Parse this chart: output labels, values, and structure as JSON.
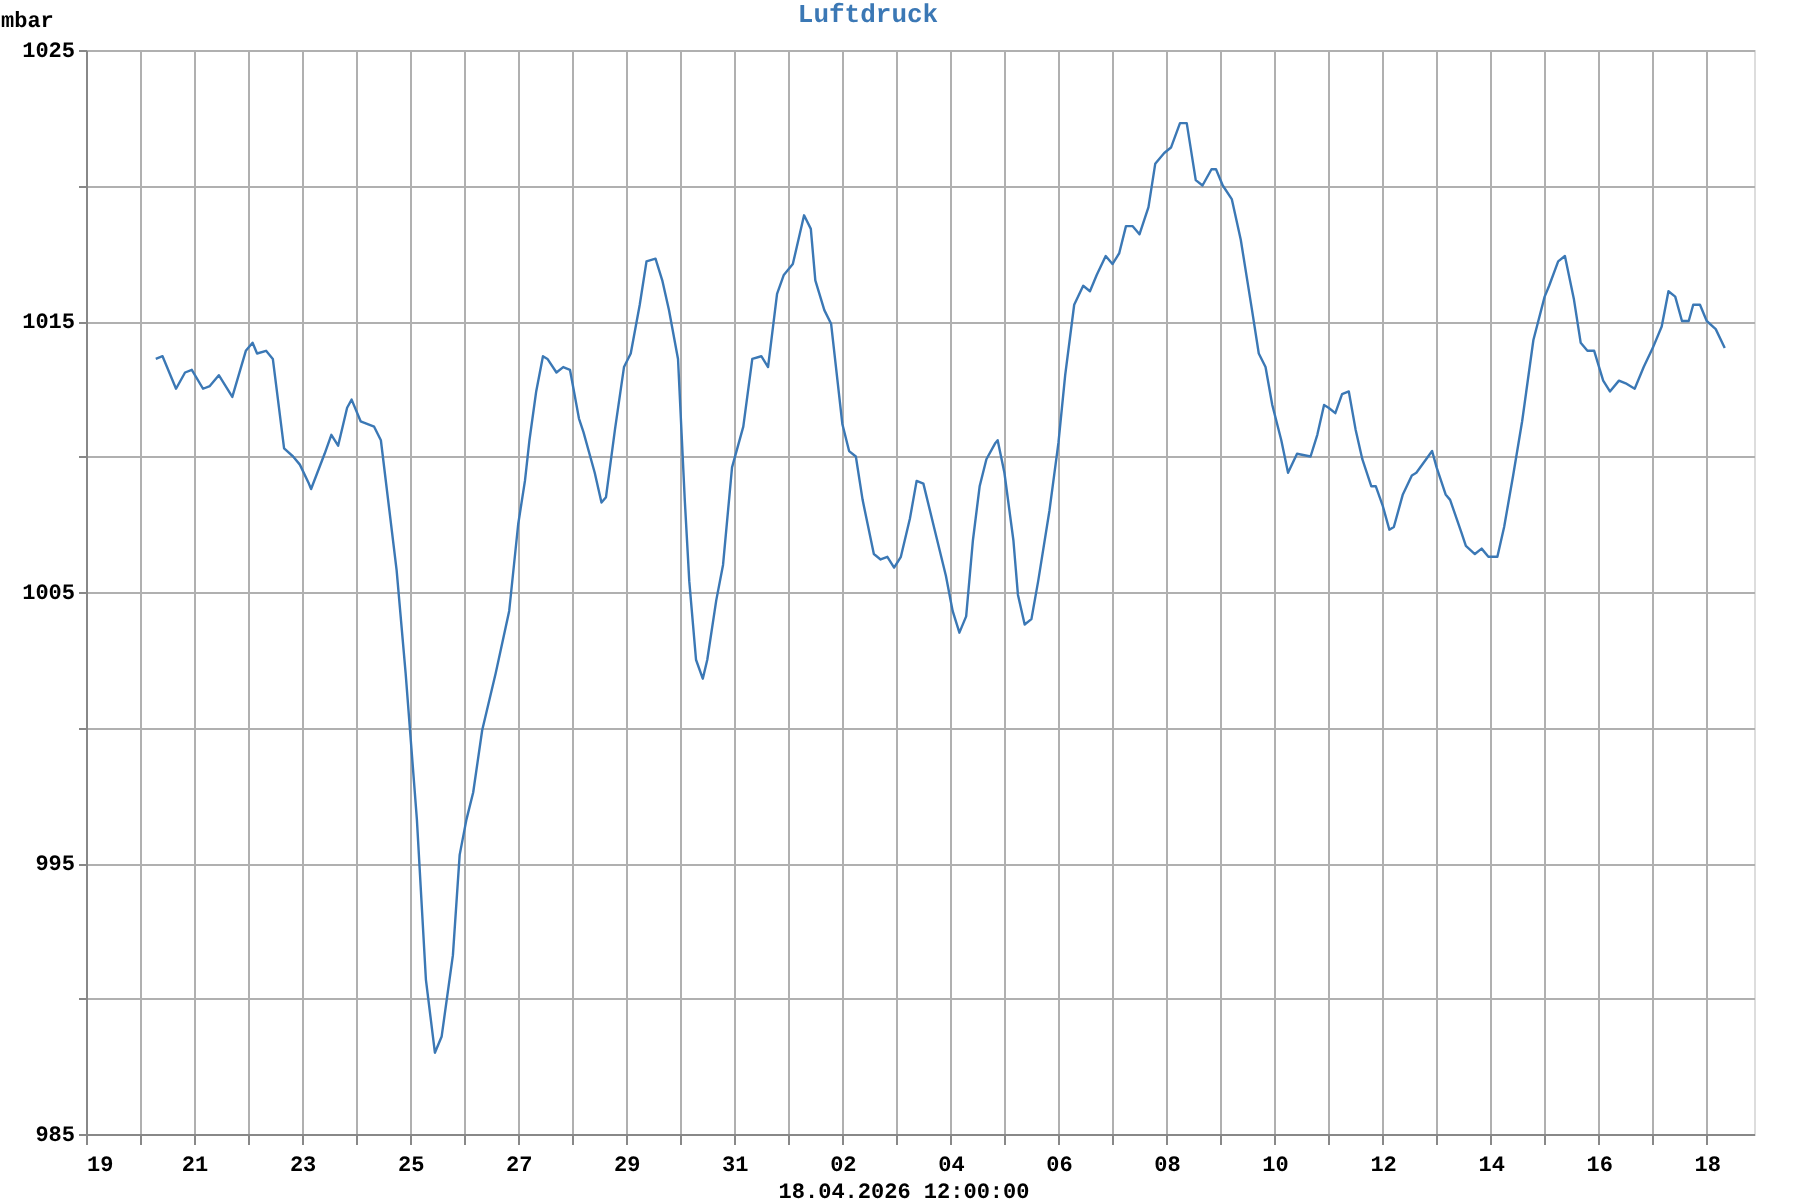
{
  "chart_data": {
    "type": "line",
    "title": "Luftdruck",
    "ylabel": "mbar",
    "annotations": [
      "18.04.2026 12:00:00"
    ],
    "x": [
      "2026-03-20T07:00",
      "2026-03-20T10:00",
      "2026-03-20T16:00",
      "2026-03-20T20:00",
      "2026-03-20T23:00",
      "2026-03-21T04:00",
      "2026-03-21T07:00",
      "2026-03-21T11:00",
      "2026-03-21T17:00",
      "2026-03-21T23:00",
      "2026-03-22T02:00",
      "2026-03-22T04:00",
      "2026-03-22T08:00",
      "2026-03-22T11:00",
      "2026-03-22T16:00",
      "2026-03-22T20:00",
      "2026-03-22T23:00",
      "2026-03-23T03:00",
      "2026-03-23T04:00",
      "2026-03-23T10:00",
      "2026-03-23T13:00",
      "2026-03-23T16:00",
      "2026-03-23T20:00",
      "2026-03-23T22:00",
      "2026-03-24T02:00",
      "2026-03-24T08:00",
      "2026-03-24T11:00",
      "2026-03-24T18:00",
      "2026-03-24T22:00",
      "2026-03-25T03:00",
      "2026-03-25T07:00",
      "2026-03-25T11:00",
      "2026-03-25T14:00",
      "2026-03-25T19:00",
      "2026-03-25T22:00",
      "2026-03-26T01:00",
      "2026-03-26T04:00",
      "2026-03-26T08:00",
      "2026-03-26T14:00",
      "2026-03-26T20:00",
      "2026-03-27T00:00",
      "2026-03-27T03:00",
      "2026-03-27T05:00",
      "2026-03-27T08:00",
      "2026-03-27T11:00",
      "2026-03-27T13:00",
      "2026-03-27T17:00",
      "2026-03-27T20:00",
      "2026-03-27T23:00",
      "2026-03-28T03:00",
      "2026-03-28T05:00",
      "2026-03-28T10:00",
      "2026-03-28T13:00",
      "2026-03-28T15:00",
      "2026-03-28T19:00",
      "2026-03-28T23:00",
      "2026-03-29T02:00",
      "2026-03-29T06:00",
      "2026-03-29T09:00",
      "2026-03-29T13:00",
      "2026-03-29T16:00",
      "2026-03-29T19:00",
      "2026-03-29T23:00",
      "2026-03-30T02:00",
      "2026-03-30T04:00",
      "2026-03-30T07:00",
      "2026-03-30T10:00",
      "2026-03-30T12:00",
      "2026-03-30T16:00",
      "2026-03-30T19:00",
      "2026-03-30T23:00",
      "2026-03-31T04:00",
      "2026-03-31T08:00",
      "2026-03-31T12:00",
      "2026-03-31T15:00",
      "2026-03-31T19:00",
      "2026-03-31T22:00",
      "2026-04-01T02:00",
      "2026-04-01T07:00",
      "2026-04-01T10:00",
      "2026-04-01T12:00",
      "2026-04-01T16:00",
      "2026-04-01T19:00",
      "2026-04-02T00:00",
      "2026-04-02T03:00",
      "2026-04-02T06:00",
      "2026-04-02T09:00",
      "2026-04-02T14:00",
      "2026-04-02T17:00",
      "2026-04-02T20:00",
      "2026-04-02T23:00",
      "2026-04-03T02:00",
      "2026-04-03T06:00",
      "2026-04-03T09:00",
      "2026-04-03T12:00",
      "2026-04-03T17:00",
      "2026-04-03T22:00",
      "2026-04-04T01:00",
      "2026-04-04T04:00",
      "2026-04-04T07:00",
      "2026-04-04T10:00",
      "2026-04-04T13:00",
      "2026-04-04T16:00",
      "2026-04-04T20:00",
      "2026-04-04T21:00",
      "2026-04-05T00:00",
      "2026-04-05T04:00",
      "2026-04-05T06:00",
      "2026-04-05T09:00",
      "2026-04-05T12:00",
      "2026-04-05T15:00",
      "2026-04-05T20:00",
      "2026-04-06T00:00",
      "2026-04-06T03:00",
      "2026-04-06T07:00",
      "2026-04-06T11:00",
      "2026-04-06T14:00",
      "2026-04-06T17:00",
      "2026-04-06T21:00",
      "2026-04-07T00:00",
      "2026-04-07T03:00",
      "2026-04-07T06:00",
      "2026-04-07T09:00",
      "2026-04-07T12:00",
      "2026-04-07T16:00",
      "2026-04-07T19:00",
      "2026-04-07T23:00",
      "2026-04-08T02:00",
      "2026-04-08T06:00",
      "2026-04-08T09:00",
      "2026-04-08T13:00",
      "2026-04-08T16:00",
      "2026-04-08T20:00",
      "2026-04-08T22:00",
      "2026-04-09T01:00",
      "2026-04-09T05:00",
      "2026-04-09T09:00",
      "2026-04-09T14:00",
      "2026-04-09T17:00",
      "2026-04-09T20:00",
      "2026-04-09T23:00",
      "2026-04-10T03:00",
      "2026-04-10T06:00",
      "2026-04-10T10:00",
      "2026-04-10T16:00",
      "2026-04-10T19:00",
      "2026-04-10T22:00",
      "2026-04-11T00:00",
      "2026-04-11T03:00",
      "2026-04-11T06:00",
      "2026-04-11T09:00",
      "2026-04-11T12:00",
      "2026-04-11T15:00",
      "2026-04-11T19:00",
      "2026-04-11T21:00",
      "2026-04-12T00:00",
      "2026-04-12T03:00",
      "2026-04-12T05:00",
      "2026-04-12T09:00",
      "2026-04-12T13:00",
      "2026-04-12T15:00",
      "2026-04-12T22:00",
      "2026-04-13T00:00",
      "2026-04-13T04:00",
      "2026-04-13T06:00",
      "2026-04-13T11:00",
      "2026-04-13T13:00",
      "2026-04-13T17:00",
      "2026-04-13T20:00",
      "2026-04-13T23:00",
      "2026-04-14T03:00",
      "2026-04-14T06:00",
      "2026-04-14T10:00",
      "2026-04-14T14:00",
      "2026-04-14T19:00",
      "2026-04-15T00:00",
      "2026-04-15T02:00",
      "2026-04-15T06:00",
      "2026-04-15T09:00",
      "2026-04-15T13:00",
      "2026-04-15T16:00",
      "2026-04-15T19:00",
      "2026-04-15T22:00",
      "2026-04-16T02:00",
      "2026-04-16T05:00",
      "2026-04-16T09:00",
      "2026-04-16T12:00",
      "2026-04-16T16:00",
      "2026-04-16T20:00",
      "2026-04-17T00:00",
      "2026-04-17T04:00",
      "2026-04-17T07:00",
      "2026-04-17T10:00",
      "2026-04-17T13:00",
      "2026-04-17T16:00",
      "2026-04-17T18:00",
      "2026-04-17T21:00",
      "2026-04-18T00:00",
      "2026-04-18T04:00",
      "2026-04-18T08:00"
    ],
    "series": [
      {
        "color": "#3b78b5",
        "values": [
          1013.6,
          1013.7,
          1012.5,
          1013.1,
          1013.2,
          1012.5,
          1012.6,
          1013.0,
          1012.2,
          1013.9,
          1014.2,
          1013.8,
          1013.9,
          1013.6,
          1010.3,
          1010.0,
          1009.7,
          1009.0,
          1008.8,
          1010.1,
          1010.8,
          1010.4,
          1011.8,
          1012.1,
          1011.3,
          1011.1,
          1010.6,
          1005.8,
          1002.0,
          996.6,
          990.7,
          988.0,
          988.6,
          991.6,
          995.3,
          996.6,
          997.6,
          999.9,
          1002.0,
          1004.3,
          1007.5,
          1009.1,
          1010.6,
          1012.4,
          1013.7,
          1013.6,
          1013.1,
          1013.3,
          1013.2,
          1011.4,
          1010.9,
          1009.4,
          1008.3,
          1008.5,
          1011.0,
          1013.3,
          1013.8,
          1015.6,
          1017.2,
          1017.3,
          1016.5,
          1015.4,
          1013.6,
          1008.4,
          1005.4,
          1002.5,
          1001.8,
          1002.5,
          1004.7,
          1006.0,
          1009.6,
          1011.1,
          1013.6,
          1013.7,
          1013.3,
          1016.0,
          1016.7,
          1017.1,
          1018.9,
          1018.4,
          1016.5,
          1015.4,
          1014.9,
          1011.2,
          1010.2,
          1010.0,
          1008.4,
          1006.4,
          1006.2,
          1006.3,
          1005.9,
          1006.3,
          1007.7,
          1009.1,
          1009.0,
          1007.3,
          1005.6,
          1004.3,
          1003.5,
          1004.1,
          1006.9,
          1008.9,
          1009.9,
          1010.5,
          1010.6,
          1009.4,
          1006.9,
          1004.9,
          1003.8,
          1004.0,
          1005.4,
          1008.0,
          1010.5,
          1013.0,
          1015.6,
          1016.3,
          1016.1,
          1016.7,
          1017.4,
          1017.1,
          1017.5,
          1018.5,
          1018.5,
          1018.2,
          1019.2,
          1020.8,
          1021.2,
          1021.4,
          1022.3,
          1022.3,
          1020.2,
          1020.0,
          1020.6,
          1020.6,
          1020.0,
          1019.5,
          1018.0,
          1015.4,
          1013.8,
          1013.3,
          1011.9,
          1010.6,
          1009.4,
          1010.1,
          1010.0,
          1010.8,
          1011.9,
          1011.8,
          1011.6,
          1012.3,
          1012.4,
          1011.0,
          1009.9,
          1008.9,
          1008.9,
          1008.2,
          1007.3,
          1007.4,
          1008.6,
          1009.3,
          1009.4,
          1010.2,
          1009.6,
          1008.6,
          1008.4,
          1007.2,
          1006.7,
          1006.4,
          1006.6,
          1006.3,
          1006.3,
          1007.4,
          1009.3,
          1011.3,
          1014.3,
          1015.9,
          1016.3,
          1017.2,
          1017.4,
          1015.8,
          1014.2,
          1013.9,
          1013.9,
          1012.8,
          1012.4,
          1012.8,
          1012.7,
          1012.5,
          1013.3,
          1014.0,
          1014.8,
          1016.1,
          1015.9,
          1015.0,
          1015.0,
          1015.6,
          1015.6,
          1015.0,
          1014.7,
          1014.0
        ]
      }
    ],
    "xlim": [
      "2026-03-19",
      "2026-04-18T21:00"
    ],
    "xticks": [
      {
        "value": "2026-03-19",
        "label": "19"
      },
      {
        "value": "2026-03-20",
        "label": null
      },
      {
        "value": "2026-03-21",
        "label": "21"
      },
      {
        "value": "2026-03-22",
        "label": null
      },
      {
        "value": "2026-03-23",
        "label": "23"
      },
      {
        "value": "2026-03-24",
        "label": null
      },
      {
        "value": "2026-03-25",
        "label": "25"
      },
      {
        "value": "2026-03-26",
        "label": null
      },
      {
        "value": "2026-03-27",
        "label": "27"
      },
      {
        "value": "2026-03-28",
        "label": null
      },
      {
        "value": "2026-03-29",
        "label": "29"
      },
      {
        "value": "2026-03-30",
        "label": null
      },
      {
        "value": "2026-03-31",
        "label": "31"
      },
      {
        "value": "2026-04-01",
        "label": null
      },
      {
        "value": "2026-04-02",
        "label": "02"
      },
      {
        "value": "2026-04-03",
        "label": null
      },
      {
        "value": "2026-04-04",
        "label": "04"
      },
      {
        "value": "2026-04-05",
        "label": null
      },
      {
        "value": "2026-04-06",
        "label": "06"
      },
      {
        "value": "2026-04-07",
        "label": null
      },
      {
        "value": "2026-04-08",
        "label": "08"
      },
      {
        "value": "2026-04-09",
        "label": null
      },
      {
        "value": "2026-04-10",
        "label": "10"
      },
      {
        "value": "2026-04-11",
        "label": null
      },
      {
        "value": "2026-04-12",
        "label": "12"
      },
      {
        "value": "2026-04-13",
        "label": null
      },
      {
        "value": "2026-04-14",
        "label": "14"
      },
      {
        "value": "2026-04-15",
        "label": null
      },
      {
        "value": "2026-04-16",
        "label": "16"
      },
      {
        "value": "2026-04-17",
        "label": null
      },
      {
        "value": "2026-04-18",
        "label": "18"
      }
    ],
    "ylim": [
      985,
      1025
    ],
    "yticks": [
      985,
      {
        "value": 990,
        "label": null
      },
      995,
      {
        "value": 1000,
        "label": null
      },
      1005,
      {
        "value": 1010,
        "label": null
      },
      1015,
      {
        "value": 1020,
        "label": null
      },
      1025
    ],
    "grid": true
  }
}
